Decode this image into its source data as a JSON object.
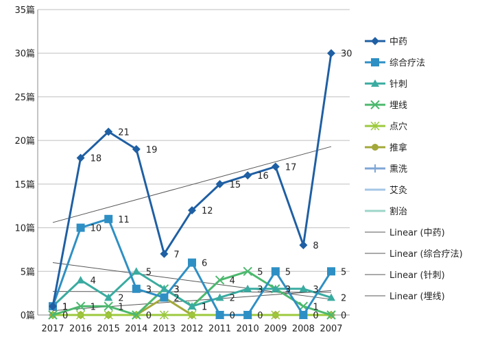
{
  "chart_data": {
    "type": "line",
    "categories": [
      "2017",
      "2016",
      "2015",
      "2014",
      "2013",
      "2012",
      "2011",
      "2010",
      "2009",
      "2008",
      "2007"
    ],
    "y_unit": "篇",
    "y_ticks": [
      "0篇",
      "5篇",
      "10篇",
      "15篇",
      "20篇",
      "25篇",
      "30篇",
      "35篇"
    ],
    "ylim": [
      0,
      35
    ],
    "y_step": 5,
    "grid": "horizontal",
    "legend_position": "right",
    "series": [
      {
        "name": "中药",
        "color": "#1f5fa3",
        "marker": "diamond",
        "values": [
          1,
          18,
          21,
          19,
          7,
          12,
          15,
          16,
          17,
          8,
          30
        ],
        "labels": true
      },
      {
        "name": "综合疗法",
        "color": "#2e8fc4",
        "marker": "square",
        "values": [
          1,
          10,
          11,
          3,
          2,
          6,
          0,
          0,
          5,
          0,
          5
        ],
        "labels": true
      },
      {
        "name": "针刺",
        "color": "#3aaba0",
        "marker": "triangle",
        "values": [
          1,
          4,
          2,
          5,
          3,
          1,
          2,
          3,
          3,
          3,
          2
        ],
        "labels": true
      },
      {
        "name": "埋线",
        "color": "#4cb86e",
        "marker": "x",
        "values": [
          0,
          1,
          1,
          0,
          3,
          1,
          4,
          5,
          3,
          1,
          0
        ],
        "labels": true
      },
      {
        "name": "点穴",
        "color": "#9cc93d",
        "marker": "star",
        "values": [
          0,
          0,
          0,
          0,
          0,
          0,
          0,
          0,
          0,
          0,
          0
        ],
        "labels": false
      },
      {
        "name": "推拿",
        "color": "#a3a83a",
        "marker": "circle",
        "values": [
          0,
          0,
          0,
          0,
          2,
          0,
          0,
          0,
          0,
          0,
          0
        ],
        "labels": false
      },
      {
        "name": "熏洗",
        "color": "#7fa6d6",
        "marker": "plus",
        "values": [
          0,
          0,
          0,
          0,
          0,
          0,
          0,
          0,
          0,
          0,
          0
        ],
        "labels": false
      },
      {
        "name": "艾灸",
        "color": "#a4c6e6",
        "marker": "none",
        "values": [
          0,
          0,
          0,
          0,
          0,
          0,
          0,
          0,
          0,
          0,
          0
        ],
        "labels": false
      },
      {
        "name": "割治",
        "color": "#9cd6c8",
        "marker": "none",
        "values": [
          0,
          0,
          0,
          0,
          0,
          0,
          0,
          0,
          0,
          0,
          0
        ],
        "labels": false
      }
    ],
    "trendlines": [
      {
        "name": "Linear (中药)",
        "color": "#555555",
        "from": 10.6,
        "to": 19.3
      },
      {
        "name": "Linear (综合疗法)",
        "color": "#555555",
        "from": 6.0,
        "to": 1.8
      },
      {
        "name": "Linear (针刺)",
        "color": "#555555",
        "from": 2.7,
        "to": 2.6
      },
      {
        "name": "Linear (埋线)",
        "color": "#555555",
        "from": 0.5,
        "to": 2.8
      }
    ]
  }
}
